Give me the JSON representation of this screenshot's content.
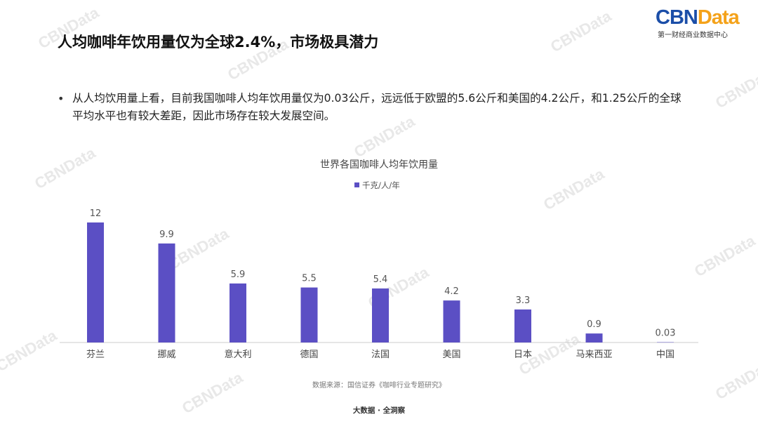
{
  "brand": {
    "logo_cbn": "CBN",
    "logo_data": "Data",
    "subtitle": "第一财经商业数据中心",
    "watermark": "CBNData"
  },
  "slide": {
    "title": "人均咖啡年饮用量仅为全球2.4%，市场极具潜力",
    "bullet": "从人均饮用量上看，目前我国咖啡人均年饮用量仅为0.03公斤，远远低于欧盟的5.6公斤和美国的4.2公斤，和1.25公斤的全球平均水平也有较大差距，因此市场存在较大发展空间。",
    "bullet_marker": "•",
    "footer": "大数据 · 全洞察"
  },
  "colors": {
    "bar": "#5b4fc4",
    "axis": "#cccccc"
  },
  "chart_data": {
    "type": "bar",
    "title": "世界各国咖啡人均年饮用量",
    "legend_position": "top-center",
    "grid": false,
    "categories": [
      "芬兰",
      "挪威",
      "意大利",
      "德国",
      "法国",
      "美国",
      "日本",
      "马来西亚",
      "中国"
    ],
    "series": [
      {
        "name": "千克/人/年",
        "values": [
          12,
          9.9,
          5.9,
          5.5,
          5.4,
          4.2,
          3.3,
          0.9,
          0.03
        ],
        "labels": [
          "12",
          "9.9",
          "5.9",
          "5.5",
          "5.4",
          "4.2",
          "3.3",
          "0.9",
          "0.03"
        ]
      }
    ],
    "ylim": [
      0,
      12
    ],
    "source": "数据来源：国信证券《咖啡行业专题研究》"
  }
}
